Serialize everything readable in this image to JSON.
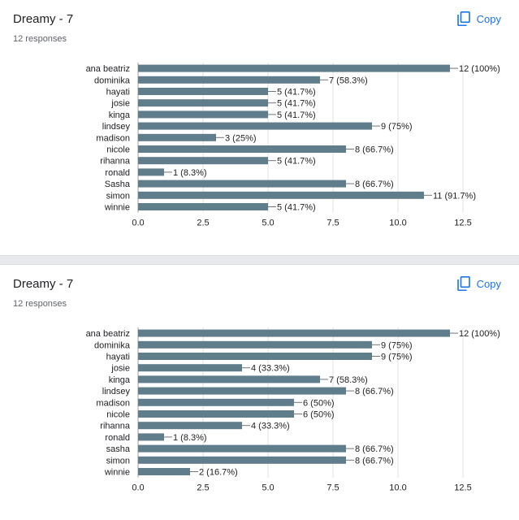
{
  "cards": [
    {
      "title": "Dreamy - 7",
      "responses": "12 responses",
      "copy_label": "Copy",
      "icon": "copy-icon",
      "chart_data": {
        "type": "bar",
        "orientation": "horizontal",
        "categories": [
          "ana beatriz",
          "dominika",
          "hayati",
          "josie",
          "kinga",
          "lindsey",
          "madison",
          "nicole",
          "rihanna",
          "ronald",
          "Sasha",
          "simon",
          "winnie"
        ],
        "values": [
          12,
          7,
          5,
          5,
          5,
          9,
          3,
          8,
          5,
          1,
          8,
          11,
          5
        ],
        "data_labels": [
          "12 (100%)",
          "7 (58.3%)",
          "5 (41.7%)",
          "5 (41.7%)",
          "5 (41.7%)",
          "9 (75%)",
          "3 (25%)",
          "8 (66.7%)",
          "5 (41.7%)",
          "1 (8.3%)",
          "8 (66.7%)",
          "11 (91.7%)",
          "5 (41.7%)"
        ],
        "xticks": [
          "0.0",
          "2.5",
          "5.0",
          "7.5",
          "10.0",
          "12.5"
        ],
        "xlim": [
          0,
          12.5
        ],
        "grid": true,
        "bar_color": "#607d8b"
      }
    },
    {
      "title": "Dreamy - 7",
      "responses": "12 responses",
      "copy_label": "Copy",
      "icon": "copy-icon",
      "chart_data": {
        "type": "bar",
        "orientation": "horizontal",
        "categories": [
          "ana beatriz",
          "dominika",
          "hayati",
          "josie",
          "kinga",
          "lindsey",
          "madison",
          "nicole",
          "rihanna",
          "ronald",
          "sasha",
          "simon",
          "winnie"
        ],
        "values": [
          12,
          9,
          9,
          4,
          7,
          8,
          6,
          6,
          4,
          1,
          8,
          8,
          2
        ],
        "data_labels": [
          "12 (100%)",
          "9 (75%)",
          "9 (75%)",
          "4 (33.3%)",
          "7 (58.3%)",
          "8 (66.7%)",
          "6 (50%)",
          "6 (50%)",
          "4 (33.3%)",
          "1 (8.3%)",
          "8 (66.7%)",
          "8 (66.7%)",
          "2 (16.7%)"
        ],
        "xticks": [
          "0.0",
          "2.5",
          "5.0",
          "7.5",
          "10.0",
          "12.5"
        ],
        "xlim": [
          0,
          12.5
        ],
        "grid": true,
        "bar_color": "#607d8b"
      }
    }
  ]
}
